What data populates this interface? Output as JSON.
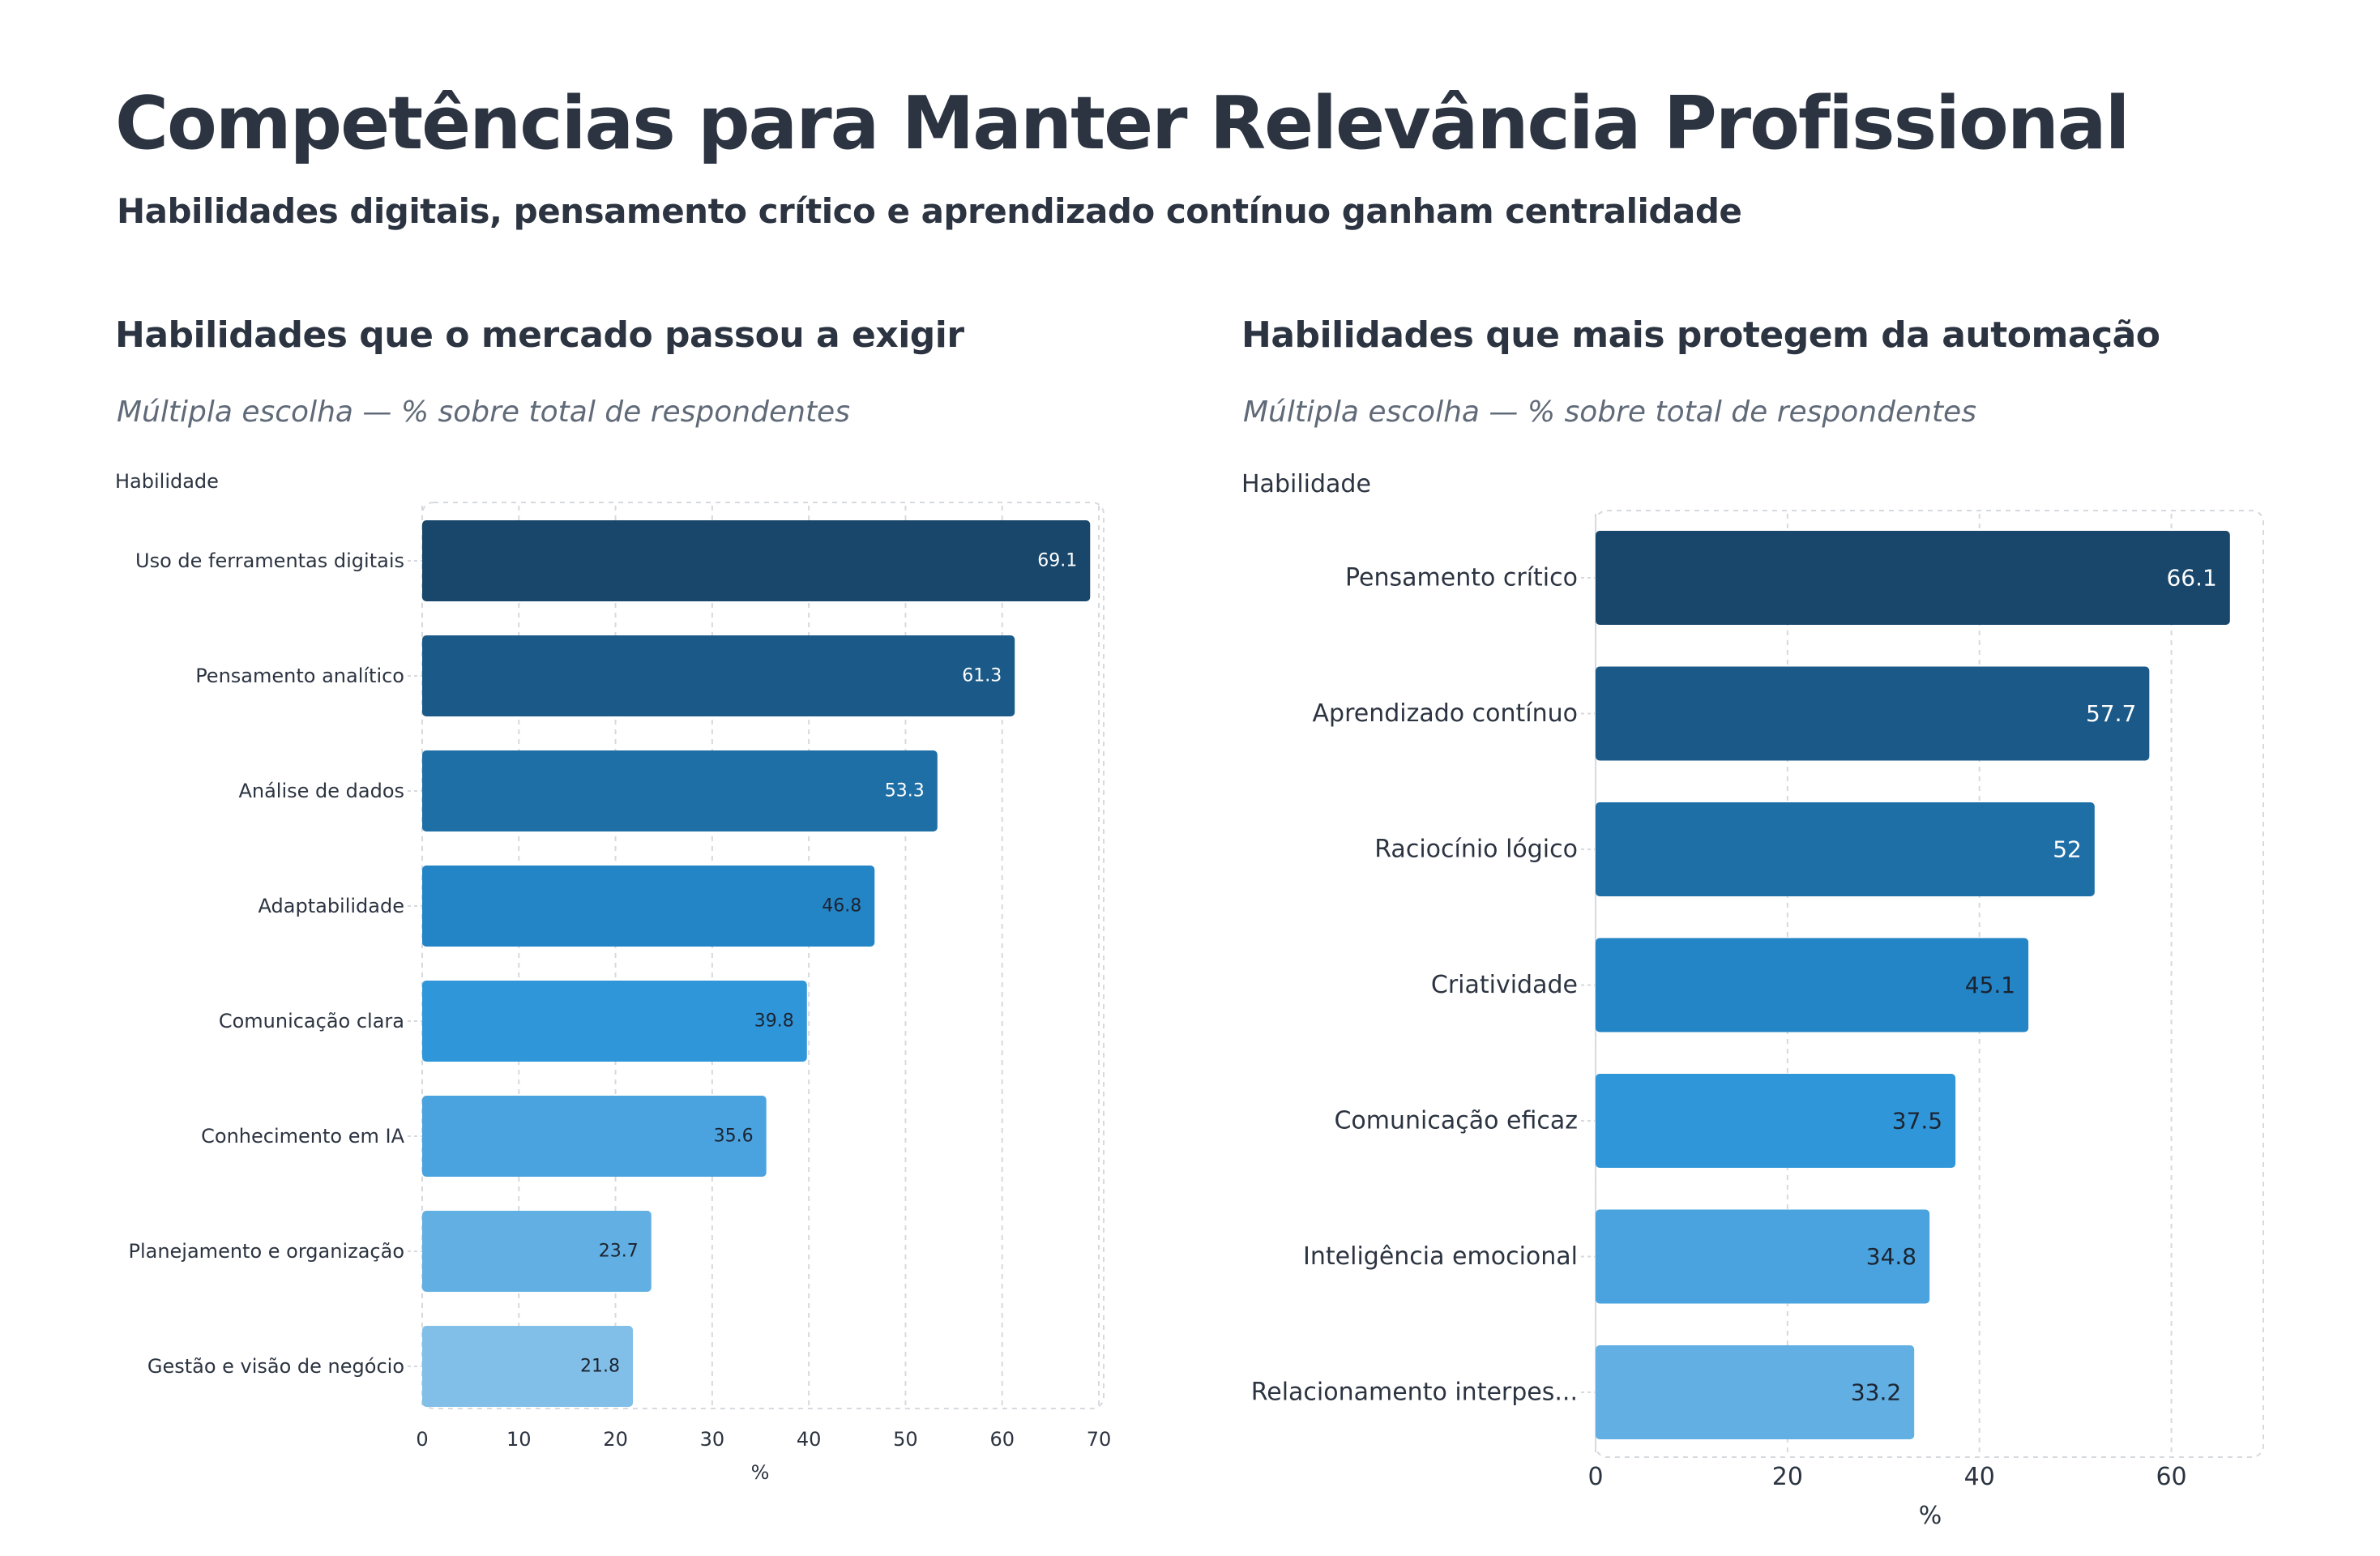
{
  "title": "Competências para Manter Relevância Profissional",
  "subtitle": "Habilidades digitais, pensamento crítico e aprendizado contínuo ganham centralidade",
  "colors": {
    "bar_palette": [
      "#18476b",
      "#1b5a88",
      "#1f6fa7",
      "#2384c6",
      "#2f96da",
      "#4aa3de",
      "#61afe3",
      "#82bfe8"
    ],
    "grid": "#d6d9de",
    "text": "#2c3441"
  },
  "chart_data": [
    {
      "type": "bar",
      "orientation": "horizontal",
      "title": "Habilidades que o mercado passou a exigir",
      "subtitle": "Múltipla escolha — % sobre total de respondentes",
      "ylabel": "Habilidade",
      "xlabel": "%",
      "categories": [
        "Uso de ferramentas digitais",
        "Pensamento analítico",
        "Análise de dados",
        "Adaptabilidade",
        "Comunicação clara",
        "Conhecimento em IA",
        "Planejamento e organização",
        "Gestão e visão de negócio"
      ],
      "values": [
        69.1,
        61.3,
        53.3,
        46.8,
        39.8,
        35.6,
        23.7,
        21.8
      ],
      "value_labels": [
        "69.1",
        "61.3",
        "53.3",
        "46.8",
        "39.8",
        "35.6",
        "23.7",
        "21.8"
      ],
      "xlim": [
        0,
        70
      ],
      "xticks": [
        "0",
        "10",
        "20",
        "30",
        "40",
        "50",
        "60",
        "70"
      ],
      "grid": true,
      "data_labels": "inside-end"
    },
    {
      "type": "bar",
      "orientation": "horizontal",
      "title": "Habilidades que mais protegem da automação",
      "subtitle": "Múltipla escolha — % sobre total de respondentes",
      "ylabel": "Habilidade",
      "xlabel": "%",
      "categories": [
        "Pensamento crítico",
        "Aprendizado contínuo",
        "Raciocínio lógico",
        "Criatividade",
        "Comunicação eficaz",
        "Inteligência emocional",
        "Relacionamento interpes..."
      ],
      "values": [
        66.1,
        57.7,
        52,
        45.1,
        37.5,
        34.8,
        33.2
      ],
      "value_labels": [
        "66.1",
        "57.7",
        "52",
        "45.1",
        "37.5",
        "34.8",
        "33.2"
      ],
      "xlim": [
        0,
        70
      ],
      "xticks": [
        "0",
        "20",
        "40",
        "60"
      ],
      "grid": true,
      "data_labels": "inside-end"
    }
  ]
}
